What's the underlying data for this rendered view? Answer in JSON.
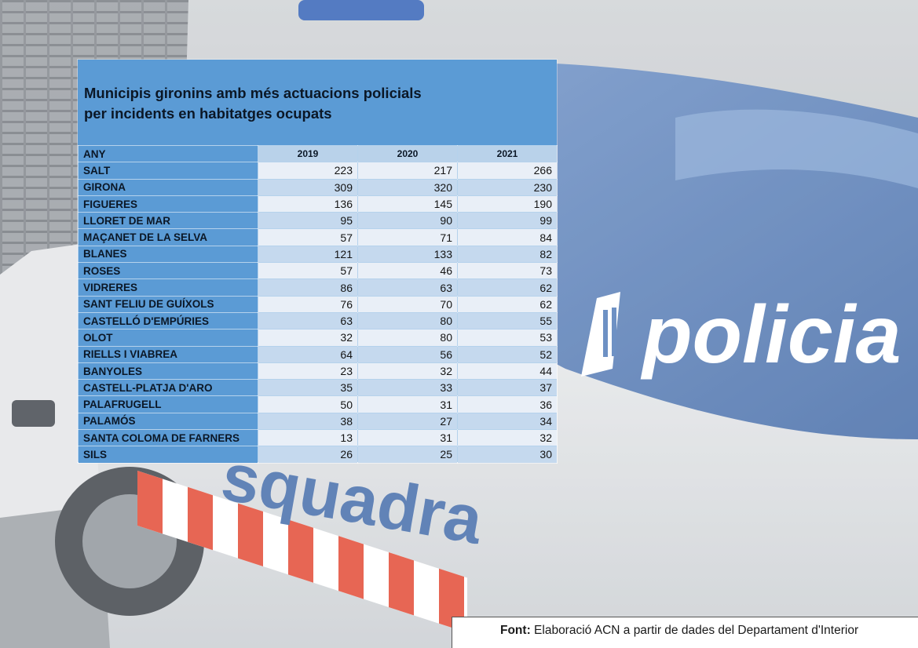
{
  "chart_data": {
    "type": "table",
    "title_lines": [
      "Municipis gironins amb més actuacions policials",
      "per incidents en habitatges ocupats"
    ],
    "header": {
      "label": "ANY",
      "years": [
        "2019",
        "2020",
        "2021"
      ]
    },
    "rows": [
      {
        "name": "SALT",
        "values": [
          223,
          217,
          266
        ]
      },
      {
        "name": "GIRONA",
        "values": [
          309,
          320,
          230
        ]
      },
      {
        "name": "FIGUERES",
        "values": [
          136,
          145,
          190
        ]
      },
      {
        "name": "LLORET DE MAR",
        "values": [
          95,
          90,
          99
        ]
      },
      {
        "name": "MAÇANET DE LA SELVA",
        "values": [
          57,
          71,
          84
        ]
      },
      {
        "name": "BLANES",
        "values": [
          121,
          133,
          82
        ]
      },
      {
        "name": "ROSES",
        "values": [
          57,
          46,
          73
        ]
      },
      {
        "name": "VIDRERES",
        "values": [
          86,
          63,
          62
        ]
      },
      {
        "name": "SANT FELIU DE GUÍXOLS",
        "values": [
          76,
          70,
          62
        ]
      },
      {
        "name": "CASTELLÓ D'EMPÚRIES",
        "values": [
          63,
          80,
          55
        ]
      },
      {
        "name": "OLOT",
        "values": [
          32,
          80,
          53
        ]
      },
      {
        "name": "RIELLS I VIABREA",
        "values": [
          64,
          56,
          52
        ]
      },
      {
        "name": "BANYOLES",
        "values": [
          23,
          32,
          44
        ]
      },
      {
        "name": "CASTELL-PLATJA D'ARO",
        "values": [
          35,
          33,
          37
        ]
      },
      {
        "name": "PALAFRUGELL",
        "values": [
          50,
          31,
          36
        ]
      },
      {
        "name": "PALAMÓS",
        "values": [
          38,
          27,
          34
        ]
      },
      {
        "name": "SANTA COLOMA DE FARNERS",
        "values": [
          13,
          31,
          32
        ]
      },
      {
        "name": "SILS",
        "values": [
          26,
          25,
          30
        ]
      }
    ]
  },
  "source": {
    "label": "Font:",
    "text": " Elaboració ACN a partir de dades del Departament d'Interior"
  },
  "background": {
    "vehicle_text_1": "policia",
    "vehicle_text_2": "squadra"
  },
  "colors": {
    "panel_blue": "#5b9bd5",
    "row_light": "#e9eff7",
    "row_mid": "#c5d9ee",
    "car_blue": "#4f79b8",
    "stripe_red": "#e2452f"
  }
}
